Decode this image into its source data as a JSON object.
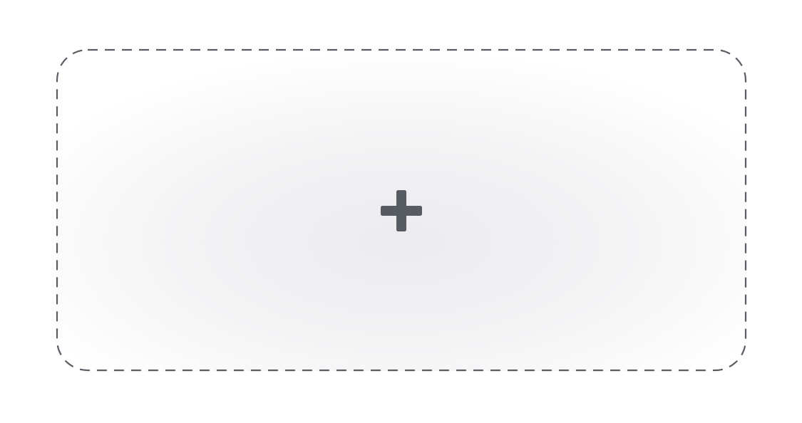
{
  "add_tile": {
    "icon": "plus-icon",
    "border_color": "#5a5d63",
    "icon_color": "#575b62",
    "fill_color": "#ececee"
  }
}
